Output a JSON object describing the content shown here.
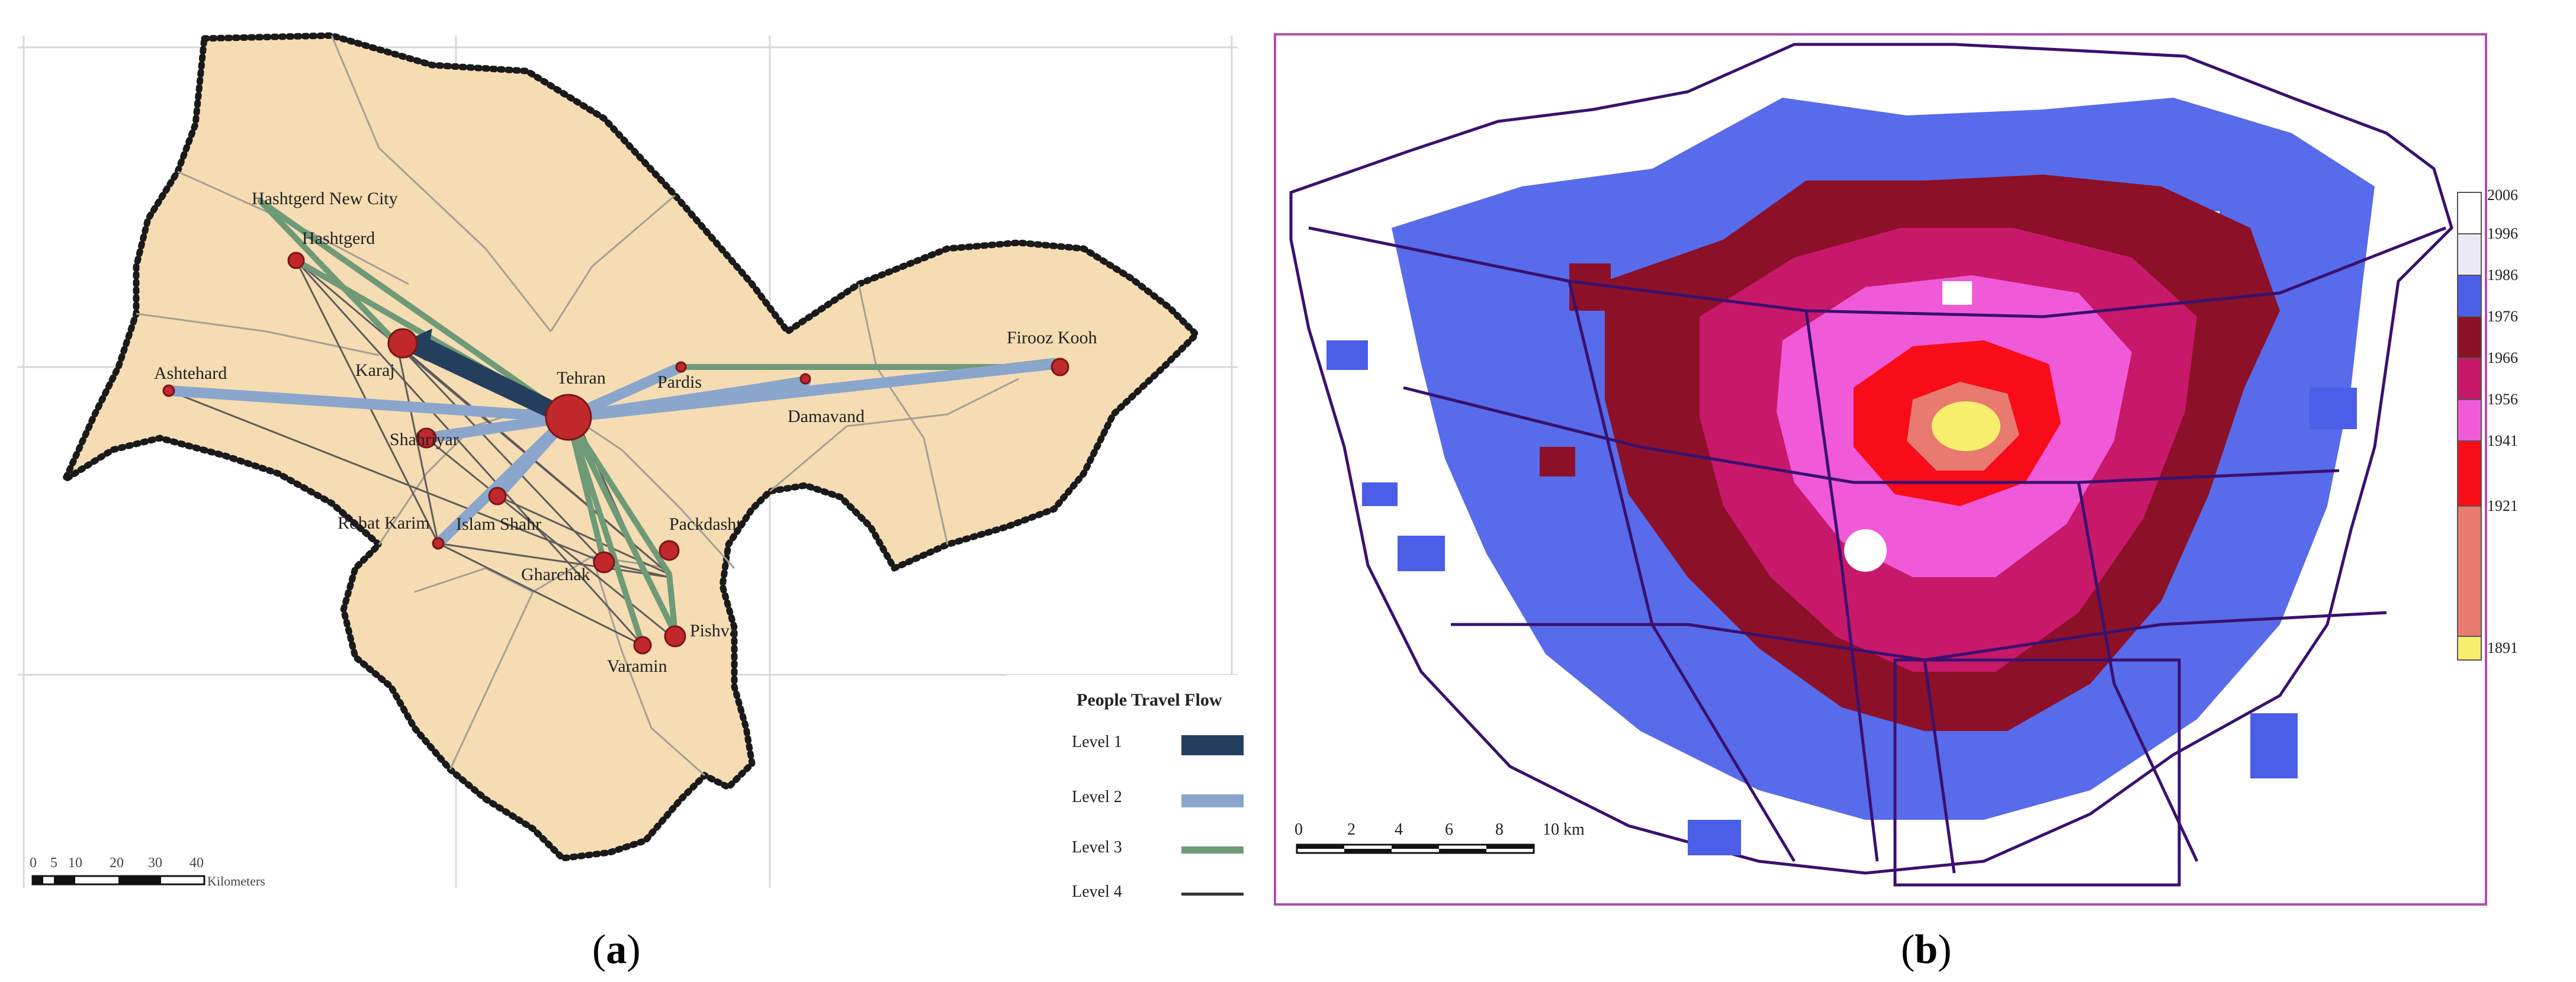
{
  "panel_a": {
    "caption_letter": "a",
    "cities": [
      {
        "name": "Hashtgerd New City"
      },
      {
        "name": "Hashtgerd"
      },
      {
        "name": "Karaj"
      },
      {
        "name": "Tehran"
      },
      {
        "name": "Ashtehard"
      },
      {
        "name": "Shahriyar"
      },
      {
        "name": "Pardis"
      },
      {
        "name": "Damavand"
      },
      {
        "name": "Firooz Kooh"
      },
      {
        "name": "Robat Karim"
      },
      {
        "name": "Islam Shahr"
      },
      {
        "name": "Gharchak"
      },
      {
        "name": "Packdasht"
      },
      {
        "name": "Pishva"
      },
      {
        "name": "Varamin"
      }
    ],
    "legend": {
      "title": "People Travel Flow",
      "levels": [
        {
          "label": "Level 1",
          "color": "#243f5e"
        },
        {
          "label": "Level 2",
          "color": "#8aa6cc"
        },
        {
          "label": "Level 3",
          "color": "#6e9a78"
        },
        {
          "label": "Level 4",
          "color": "#333333"
        }
      ]
    },
    "scale": {
      "ticks": [
        "0",
        "5",
        "10",
        "20",
        "30",
        "40"
      ],
      "unit": "Kilometers"
    },
    "colors": {
      "land": "#f5dcb2",
      "node": "#c0282c",
      "border": "#1a1a1a"
    }
  },
  "panel_b": {
    "caption_letter": "b",
    "scale": {
      "ticks": [
        "0",
        "2",
        "4",
        "6",
        "8",
        "10 km"
      ]
    },
    "legend": [
      {
        "label": "2006",
        "color": "#ffffff"
      },
      {
        "label": "1996",
        "color": "#eceaf6"
      },
      {
        "label": "1986",
        "color": "#4a5ee8"
      },
      {
        "label": "1976",
        "color": "#8b1028"
      },
      {
        "label": "1966",
        "color": "#c8186a"
      },
      {
        "label": "1956",
        "color": "#f05ad8"
      },
      {
        "label": "1941",
        "color": "#f80c18"
      },
      {
        "label": "1921",
        "color": "#e87a70"
      },
      {
        "label": "1891",
        "color": "#f6ee6c"
      }
    ]
  }
}
